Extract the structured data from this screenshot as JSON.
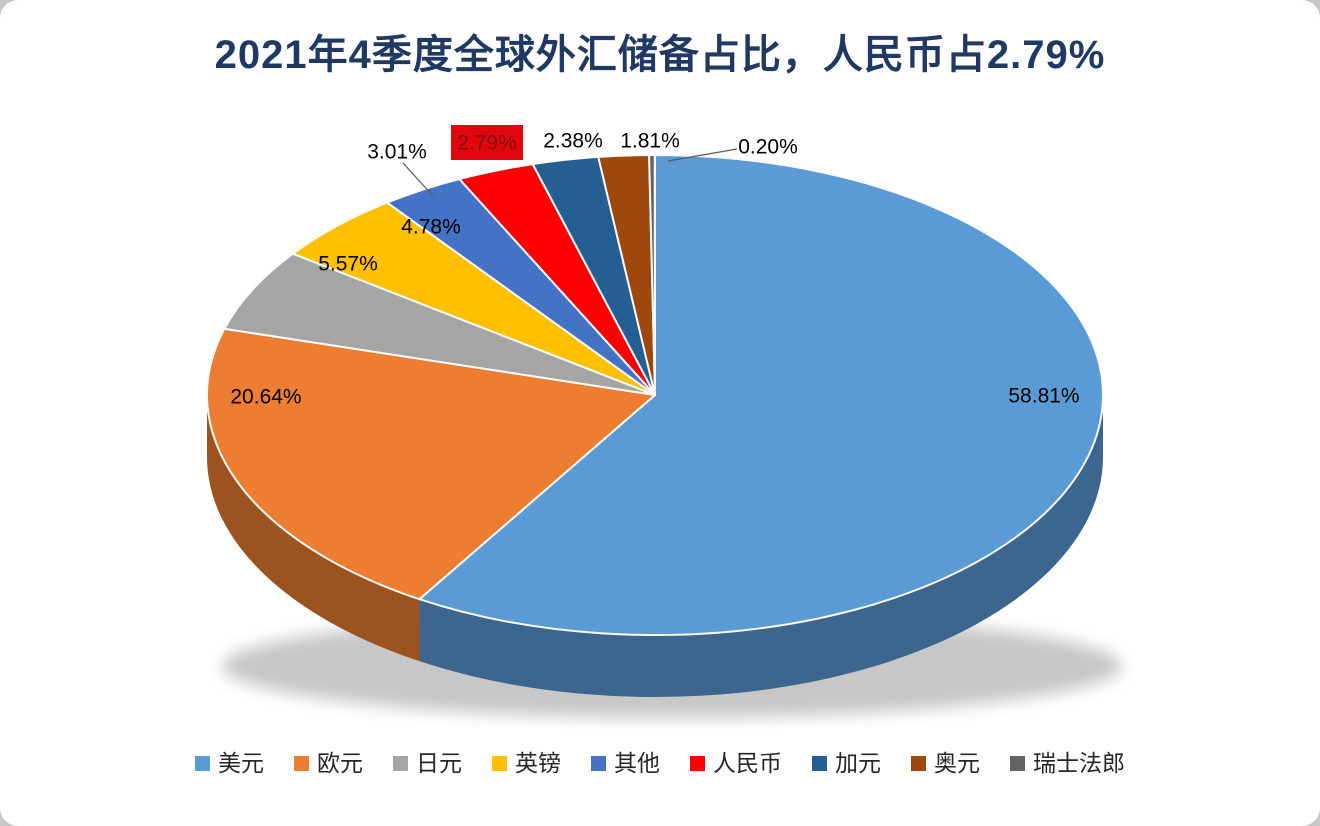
{
  "page": {
    "background": "#c7c7c7",
    "panel_background": "#ffffff"
  },
  "chart_data": {
    "type": "pie",
    "style": "3d",
    "title": "2021年4季度全球外汇储备占比，人民币占2.79%",
    "unit": "%",
    "data_labels": true,
    "legend_position": "bottom",
    "title_color": "#1F3864",
    "series": [
      {
        "key": "usd",
        "label": "美元",
        "value": 58.81,
        "color": "#5B9BD5"
      },
      {
        "key": "eur",
        "label": "欧元",
        "value": 20.64,
        "color": "#ED7D31"
      },
      {
        "key": "jpy",
        "label": "日元",
        "value": 5.57,
        "color": "#A5A5A5"
      },
      {
        "key": "gbp",
        "label": "英镑",
        "value": 4.78,
        "color": "#FFC000"
      },
      {
        "key": "other",
        "label": "其他",
        "value": 3.01,
        "color": "#4472C4"
      },
      {
        "key": "cny",
        "label": "人民币",
        "value": 2.79,
        "color": "#FF0000",
        "highlighted": true,
        "highlight_box": {
          "fill": "#E2070E",
          "text_color": "#7F1010"
        }
      },
      {
        "key": "cad",
        "label": "加元",
        "value": 2.38,
        "color": "#255E91"
      },
      {
        "key": "aud",
        "label": "奥元",
        "value": 1.81,
        "color": "#9E480E"
      },
      {
        "key": "chf",
        "label": "瑞士法郎",
        "value": 0.2,
        "color": "#636363"
      }
    ]
  }
}
